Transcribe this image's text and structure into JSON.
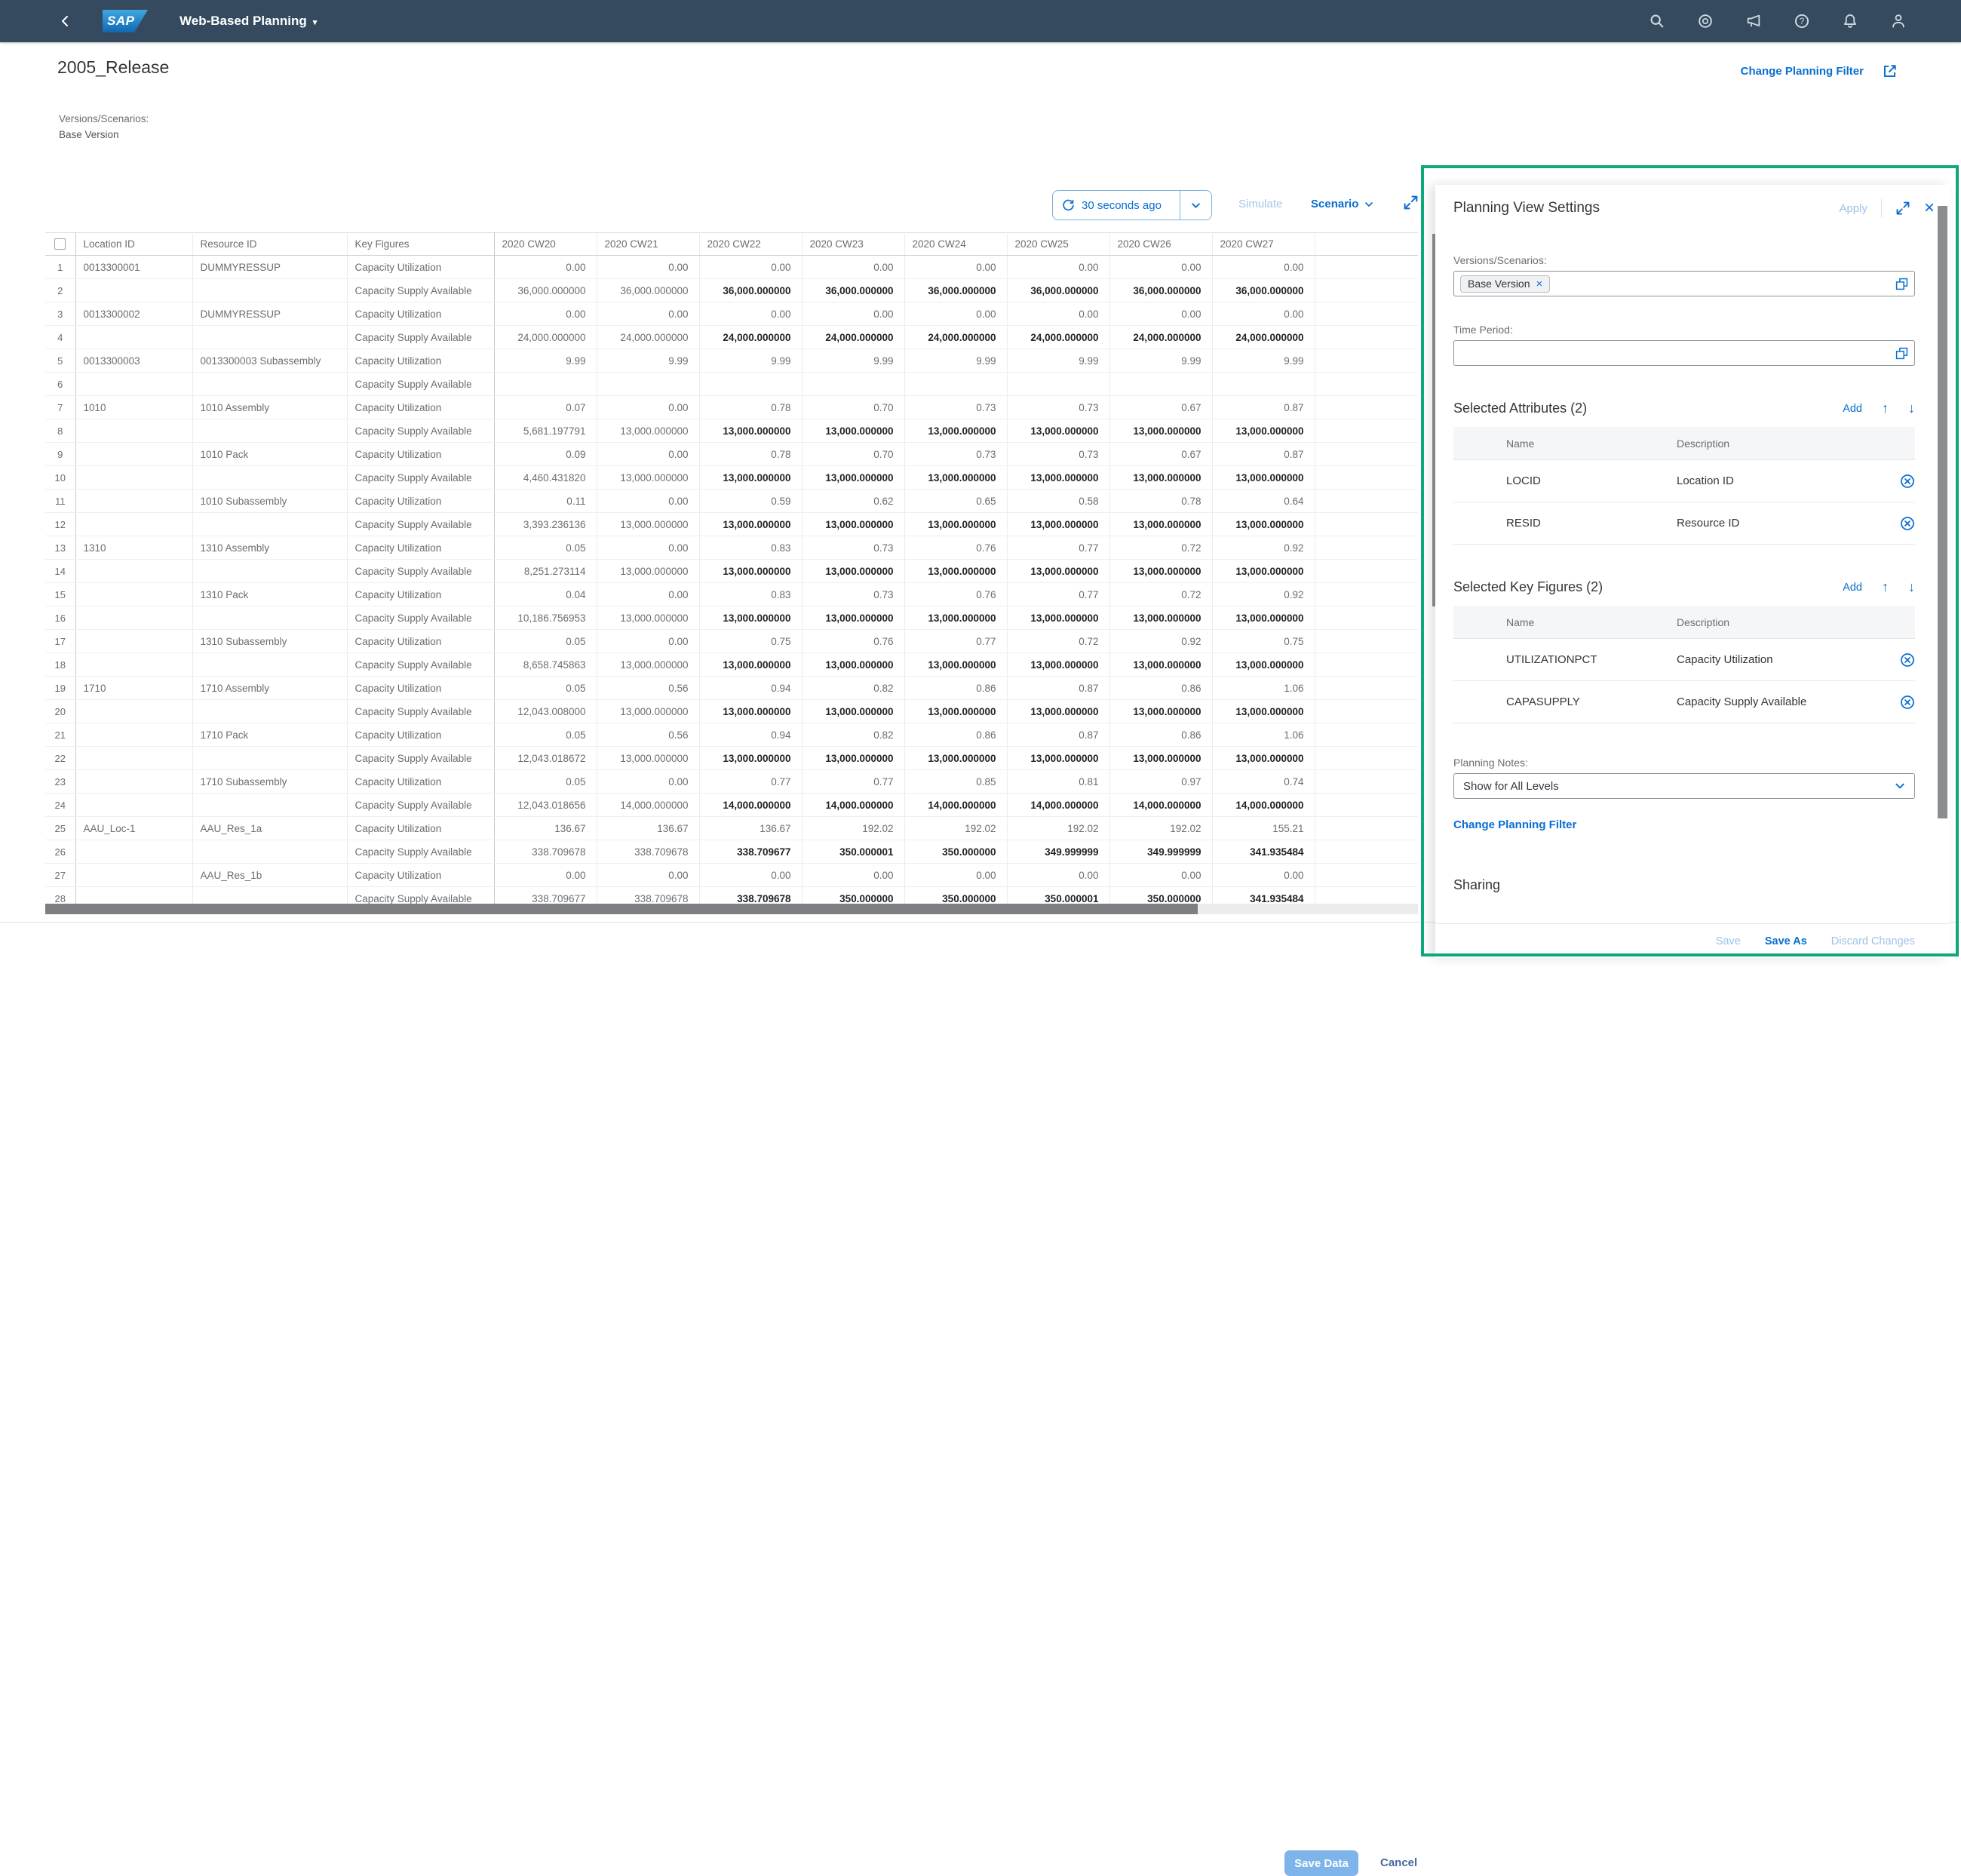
{
  "shell": {
    "app_title": "Web-Based Planning"
  },
  "page": {
    "title": "2005_Release",
    "change_planning_filter": "Change Planning Filter",
    "versions_label": "Versions/Scenarios:",
    "versions_value": "Base Version"
  },
  "toolbar": {
    "refresh_text": "30 seconds ago",
    "simulate": "Simulate",
    "scenario": "Scenario"
  },
  "table": {
    "columns": [
      "Location ID",
      "Resource ID",
      "Key Figures",
      "2020 CW20",
      "2020 CW21",
      "2020 CW22",
      "2020 CW23",
      "2020 CW24",
      "2020 CW25",
      "2020 CW26",
      "2020 CW27"
    ],
    "rows": [
      {
        "n": 1,
        "loc": "0013300001",
        "res": "DUMMYRESSUP",
        "kf": "Capacity Utilization",
        "edit": false,
        "vals": [
          "0.00",
          "0.00",
          "0.00",
          "0.00",
          "0.00",
          "0.00",
          "0.00",
          "0.00"
        ]
      },
      {
        "n": 2,
        "loc": "",
        "res": "",
        "kf": "Capacity Supply Available",
        "edit": true,
        "vals": [
          "36,000.000000",
          "36,000.000000",
          "36,000.000000",
          "36,000.000000",
          "36,000.000000",
          "36,000.000000",
          "36,000.000000",
          "36,000.000000"
        ]
      },
      {
        "n": 3,
        "loc": "0013300002",
        "res": "DUMMYRESSUP",
        "kf": "Capacity Utilization",
        "edit": false,
        "vals": [
          "0.00",
          "0.00",
          "0.00",
          "0.00",
          "0.00",
          "0.00",
          "0.00",
          "0.00"
        ]
      },
      {
        "n": 4,
        "loc": "",
        "res": "",
        "kf": "Capacity Supply Available",
        "edit": true,
        "vals": [
          "24,000.000000",
          "24,000.000000",
          "24,000.000000",
          "24,000.000000",
          "24,000.000000",
          "24,000.000000",
          "24,000.000000",
          "24,000.000000"
        ]
      },
      {
        "n": 5,
        "loc": "0013300003",
        "res": "0013300003 Subassembly",
        "kf": "Capacity Utilization",
        "edit": false,
        "vals": [
          "9.99",
          "9.99",
          "9.99",
          "9.99",
          "9.99",
          "9.99",
          "9.99",
          "9.99"
        ]
      },
      {
        "n": 6,
        "loc": "",
        "res": "",
        "kf": "Capacity Supply Available",
        "edit": true,
        "vals": [
          "",
          "",
          "",
          "",
          "",
          "",
          "",
          ""
        ]
      },
      {
        "n": 7,
        "loc": "1010",
        "res": "1010 Assembly",
        "kf": "Capacity Utilization",
        "edit": false,
        "vals": [
          "0.07",
          "0.00",
          "0.78",
          "0.70",
          "0.73",
          "0.73",
          "0.67",
          "0.87"
        ]
      },
      {
        "n": 8,
        "loc": "",
        "res": "",
        "kf": "Capacity Supply Available",
        "edit": true,
        "vals": [
          "5,681.197791",
          "13,000.000000",
          "13,000.000000",
          "13,000.000000",
          "13,000.000000",
          "13,000.000000",
          "13,000.000000",
          "13,000.000000"
        ]
      },
      {
        "n": 9,
        "loc": "",
        "res": "1010 Pack",
        "kf": "Capacity Utilization",
        "edit": false,
        "vals": [
          "0.09",
          "0.00",
          "0.78",
          "0.70",
          "0.73",
          "0.73",
          "0.67",
          "0.87"
        ]
      },
      {
        "n": 10,
        "loc": "",
        "res": "",
        "kf": "Capacity Supply Available",
        "edit": true,
        "vals": [
          "4,460.431820",
          "13,000.000000",
          "13,000.000000",
          "13,000.000000",
          "13,000.000000",
          "13,000.000000",
          "13,000.000000",
          "13,000.000000"
        ]
      },
      {
        "n": 11,
        "loc": "",
        "res": "1010 Subassembly",
        "kf": "Capacity Utilization",
        "edit": false,
        "vals": [
          "0.11",
          "0.00",
          "0.59",
          "0.62",
          "0.65",
          "0.58",
          "0.78",
          "0.64"
        ]
      },
      {
        "n": 12,
        "loc": "",
        "res": "",
        "kf": "Capacity Supply Available",
        "edit": true,
        "vals": [
          "3,393.236136",
          "13,000.000000",
          "13,000.000000",
          "13,000.000000",
          "13,000.000000",
          "13,000.000000",
          "13,000.000000",
          "13,000.000000"
        ]
      },
      {
        "n": 13,
        "loc": "1310",
        "res": "1310 Assembly",
        "kf": "Capacity Utilization",
        "edit": false,
        "vals": [
          "0.05",
          "0.00",
          "0.83",
          "0.73",
          "0.76",
          "0.77",
          "0.72",
          "0.92"
        ]
      },
      {
        "n": 14,
        "loc": "",
        "res": "",
        "kf": "Capacity Supply Available",
        "edit": true,
        "vals": [
          "8,251.273114",
          "13,000.000000",
          "13,000.000000",
          "13,000.000000",
          "13,000.000000",
          "13,000.000000",
          "13,000.000000",
          "13,000.000000"
        ]
      },
      {
        "n": 15,
        "loc": "",
        "res": "1310 Pack",
        "kf": "Capacity Utilization",
        "edit": false,
        "vals": [
          "0.04",
          "0.00",
          "0.83",
          "0.73",
          "0.76",
          "0.77",
          "0.72",
          "0.92"
        ]
      },
      {
        "n": 16,
        "loc": "",
        "res": "",
        "kf": "Capacity Supply Available",
        "edit": true,
        "vals": [
          "10,186.756953",
          "13,000.000000",
          "13,000.000000",
          "13,000.000000",
          "13,000.000000",
          "13,000.000000",
          "13,000.000000",
          "13,000.000000"
        ]
      },
      {
        "n": 17,
        "loc": "",
        "res": "1310 Subassembly",
        "kf": "Capacity Utilization",
        "edit": false,
        "vals": [
          "0.05",
          "0.00",
          "0.75",
          "0.76",
          "0.77",
          "0.72",
          "0.92",
          "0.75"
        ]
      },
      {
        "n": 18,
        "loc": "",
        "res": "",
        "kf": "Capacity Supply Available",
        "edit": true,
        "vals": [
          "8,658.745863",
          "13,000.000000",
          "13,000.000000",
          "13,000.000000",
          "13,000.000000",
          "13,000.000000",
          "13,000.000000",
          "13,000.000000"
        ]
      },
      {
        "n": 19,
        "loc": "1710",
        "res": "1710 Assembly",
        "kf": "Capacity Utilization",
        "edit": false,
        "vals": [
          "0.05",
          "0.56",
          "0.94",
          "0.82",
          "0.86",
          "0.87",
          "0.86",
          "1.06"
        ]
      },
      {
        "n": 20,
        "loc": "",
        "res": "",
        "kf": "Capacity Supply Available",
        "edit": true,
        "vals": [
          "12,043.008000",
          "13,000.000000",
          "13,000.000000",
          "13,000.000000",
          "13,000.000000",
          "13,000.000000",
          "13,000.000000",
          "13,000.000000"
        ]
      },
      {
        "n": 21,
        "loc": "",
        "res": "1710 Pack",
        "kf": "Capacity Utilization",
        "edit": false,
        "vals": [
          "0.05",
          "0.56",
          "0.94",
          "0.82",
          "0.86",
          "0.87",
          "0.86",
          "1.06"
        ]
      },
      {
        "n": 22,
        "loc": "",
        "res": "",
        "kf": "Capacity Supply Available",
        "edit": true,
        "vals": [
          "12,043.018672",
          "13,000.000000",
          "13,000.000000",
          "13,000.000000",
          "13,000.000000",
          "13,000.000000",
          "13,000.000000",
          "13,000.000000"
        ]
      },
      {
        "n": 23,
        "loc": "",
        "res": "1710 Subassembly",
        "kf": "Capacity Utilization",
        "edit": false,
        "vals": [
          "0.05",
          "0.00",
          "0.77",
          "0.77",
          "0.85",
          "0.81",
          "0.97",
          "0.74"
        ]
      },
      {
        "n": 24,
        "loc": "",
        "res": "",
        "kf": "Capacity Supply Available",
        "edit": true,
        "vals": [
          "12,043.018656",
          "14,000.000000",
          "14,000.000000",
          "14,000.000000",
          "14,000.000000",
          "14,000.000000",
          "14,000.000000",
          "14,000.000000"
        ]
      },
      {
        "n": 25,
        "loc": "AAU_Loc-1",
        "res": "AAU_Res_1a",
        "kf": "Capacity Utilization",
        "edit": false,
        "vals": [
          "136.67",
          "136.67",
          "136.67",
          "192.02",
          "192.02",
          "192.02",
          "192.02",
          "155.21"
        ]
      },
      {
        "n": 26,
        "loc": "",
        "res": "",
        "kf": "Capacity Supply Available",
        "edit": true,
        "vals": [
          "338.709678",
          "338.709678",
          "338.709677",
          "350.000001",
          "350.000000",
          "349.999999",
          "349.999999",
          "341.935484"
        ]
      },
      {
        "n": 27,
        "loc": "",
        "res": "AAU_Res_1b",
        "kf": "Capacity Utilization",
        "edit": false,
        "vals": [
          "0.00",
          "0.00",
          "0.00",
          "0.00",
          "0.00",
          "0.00",
          "0.00",
          "0.00"
        ]
      },
      {
        "n": 28,
        "loc": "",
        "res": "",
        "kf": "Capacity Supply Available",
        "edit": true,
        "vals": [
          "338.709677",
          "338.709678",
          "338.709678",
          "350.000000",
          "350.000000",
          "350.000001",
          "350.000000",
          "341.935484"
        ]
      }
    ]
  },
  "footer": {
    "save_data": "Save Data",
    "cancel": "Cancel"
  },
  "panel": {
    "title": "Planning View Settings",
    "apply": "Apply",
    "versions_label": "Versions/Scenarios:",
    "versions_token": "Base Version",
    "time_label": "Time Period:",
    "attributes": {
      "title": "Selected Attributes (2)",
      "add": "Add",
      "col_name": "Name",
      "col_desc": "Description",
      "rows": [
        {
          "name": "LOCID",
          "desc": "Location ID"
        },
        {
          "name": "RESID",
          "desc": "Resource ID"
        }
      ]
    },
    "keyfigures": {
      "title": "Selected Key Figures (2)",
      "add": "Add",
      "col_name": "Name",
      "col_desc": "Description",
      "rows": [
        {
          "name": "UTILIZATIONPCT",
          "desc": "Capacity Utilization"
        },
        {
          "name": "CAPASUPPLY",
          "desc": "Capacity Supply Available"
        }
      ]
    },
    "notes_label": "Planning Notes:",
    "notes_value": "Show for All Levels",
    "change_filter": "Change Planning Filter",
    "sharing": "Sharing",
    "save": "Save",
    "save_as": "Save As",
    "discard": "Discard Changes"
  }
}
